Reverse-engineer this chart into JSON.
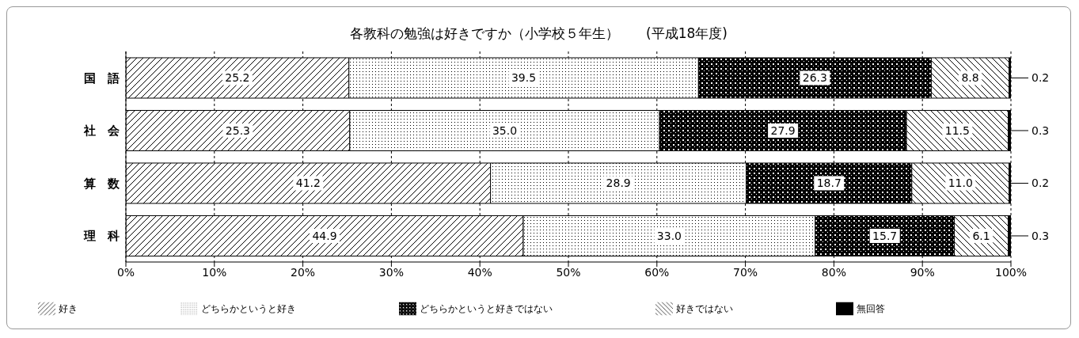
{
  "chart_data": {
    "type": "bar",
    "orientation": "horizontal",
    "stacked": true,
    "title": "各教科の勉強は好きですか（小学校５年生）　　(平成18年度)",
    "categories": [
      "国　語",
      "社　会",
      "算　数",
      "理　科"
    ],
    "series": [
      {
        "name": "好き",
        "color": "#000000",
        "values": [
          25.2,
          25.3,
          41.2,
          44.9
        ],
        "value_labels": [
          "25.2",
          "25.3",
          "41.2",
          "44.9"
        ]
      },
      {
        "name": "どちらかというと好き",
        "color": "#000000",
        "values": [
          39.5,
          35.0,
          28.9,
          33.0
        ],
        "value_labels": [
          "39.5",
          "35.0",
          "28.9",
          "33.0"
        ]
      },
      {
        "name": "どちらかというと好きではない",
        "color": "#000000",
        "values": [
          26.3,
          27.9,
          18.7,
          15.7
        ],
        "value_labels": [
          "26.3",
          "27.9",
          "18.7",
          "15.7"
        ]
      },
      {
        "name": "好きではない",
        "color": "#000000",
        "values": [
          8.8,
          11.5,
          11.0,
          6.1
        ],
        "value_labels": [
          "8.8",
          "11.5",
          "11.0",
          "6.1"
        ]
      },
      {
        "name": "無回答",
        "color": "#000000",
        "values": [
          0.2,
          0.3,
          0.2,
          0.3
        ],
        "value_labels": [
          "0.2",
          "0.3",
          "0.2",
          "0.3"
        ]
      }
    ],
    "xlim": [
      0,
      100
    ],
    "xticks": [
      {
        "value": 0,
        "label": "0%"
      },
      {
        "value": 10,
        "label": "10%"
      },
      {
        "value": 20,
        "label": "20%"
      },
      {
        "value": 30,
        "label": "30%"
      },
      {
        "value": 40,
        "label": "40%"
      },
      {
        "value": 50,
        "label": "50%"
      },
      {
        "value": 60,
        "label": "60%"
      },
      {
        "value": 70,
        "label": "70%"
      },
      {
        "value": 80,
        "label": "80%"
      },
      {
        "value": 90,
        "label": "90%"
      },
      {
        "value": 100,
        "label": "100%"
      }
    ],
    "grid": "x",
    "legend": "bottom"
  }
}
